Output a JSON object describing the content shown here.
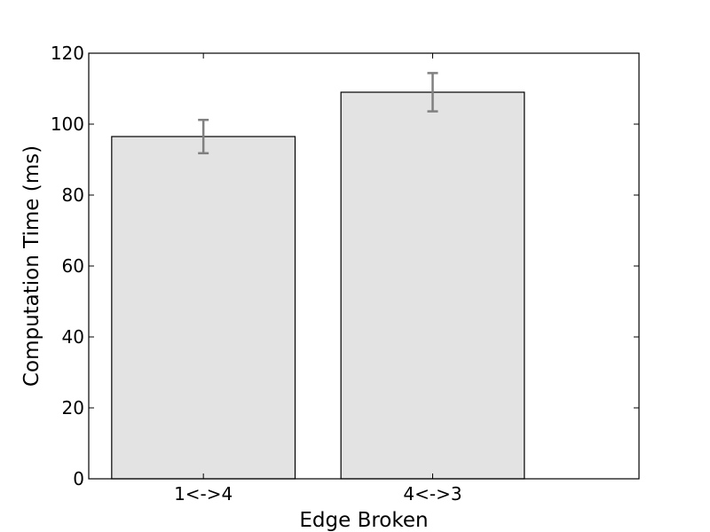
{
  "chart_data": {
    "type": "bar",
    "title": "",
    "xlabel": "Edge Broken",
    "ylabel": "Computation Time (ms)",
    "categories": [
      "1<->4",
      "4<->3"
    ],
    "values": [
      96.5,
      109
    ],
    "errors": [
      4.7,
      5.4
    ],
    "ylim": [
      0,
      120
    ],
    "yticks": [
      0,
      20,
      40,
      60,
      80,
      100,
      120
    ],
    "xlim": [
      -0.5,
      1.9
    ],
    "bar_color": "#e3e3e3",
    "error_color": "#808080",
    "grid": false,
    "legend": "none"
  }
}
